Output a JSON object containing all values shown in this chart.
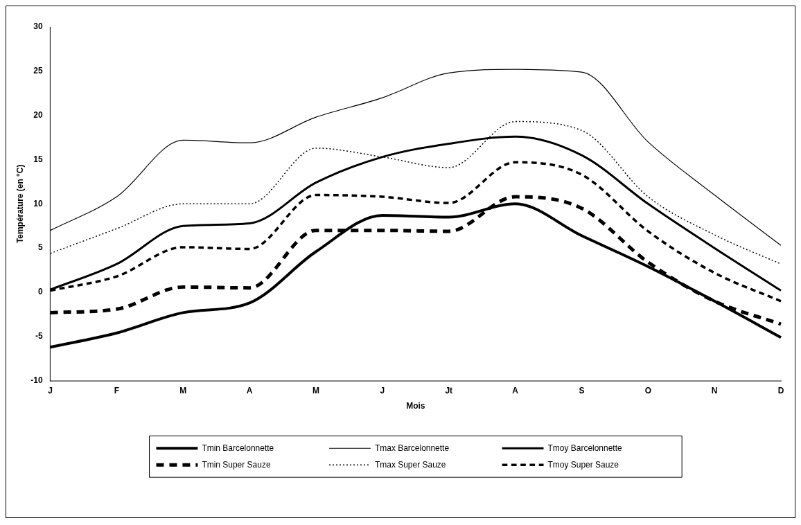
{
  "chart_data": {
    "type": "line",
    "xlabel": "Mois",
    "ylabel": "Température (en °C)",
    "categories": [
      "J",
      "F",
      "M",
      "A",
      "M",
      "J",
      "Jt",
      "A",
      "S",
      "O",
      "N",
      "D"
    ],
    "ylim": [
      -10,
      30
    ],
    "yticks": [
      -10,
      -5,
      0,
      5,
      10,
      15,
      20,
      25,
      30
    ],
    "grid": false,
    "legend": "bottom",
    "series": [
      {
        "name": "Tmin Barcelonnette",
        "color": "#000000",
        "line_style": "solid",
        "values": [
          -6.2,
          -4.6,
          -2.3,
          -1.2,
          4.6,
          8.7,
          8.5,
          10,
          6.4,
          2.9,
          -1,
          -5.1
        ]
      },
      {
        "name": "Tmax Barcelonnette",
        "color": "#000000",
        "line_style": "solid",
        "values": [
          7,
          10.8,
          17.2,
          16.9,
          19.8,
          22,
          24.8,
          25.2,
          24.9,
          17,
          11,
          5.3
        ]
      },
      {
        "name": "Tmoy Barcelonnette",
        "color": "#000000",
        "line_style": "solid",
        "values": [
          0.3,
          3.2,
          7.5,
          7.8,
          12.4,
          15.3,
          16.8,
          17.6,
          15.5,
          10,
          5,
          0.2
        ]
      },
      {
        "name": "Tmin Super Sauze",
        "color": "#000000",
        "line_style": "dashed",
        "values": [
          -2.3,
          -1.9,
          0.6,
          0.5,
          7,
          7,
          6.9,
          10.8,
          9.5,
          3.4,
          -1,
          -3.6
        ]
      },
      {
        "name": "Tmax Super Sauze",
        "color": "#000000",
        "line_style": "dotted",
        "values": [
          4.4,
          7.2,
          10,
          10,
          16.3,
          15.3,
          14.1,
          19.3,
          18.3,
          10.8,
          6.5,
          3.2
        ]
      },
      {
        "name": "Tmoy Super Sauze",
        "color": "#000000",
        "line_style": "dashed",
        "values": [
          0.2,
          1.8,
          5.1,
          4.9,
          11,
          10.8,
          10.1,
          14.7,
          13.3,
          6.9,
          2.2,
          -1
        ]
      }
    ]
  }
}
